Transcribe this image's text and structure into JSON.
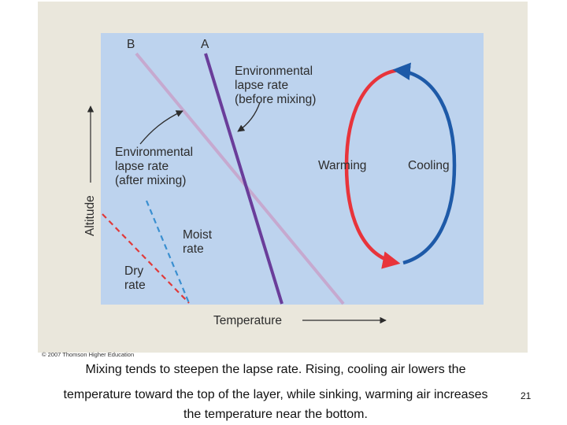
{
  "diagram": {
    "line_b_label": "B",
    "line_a_label": "A",
    "env_before_label": [
      "Environmental",
      "lapse rate",
      "(before mixing)"
    ],
    "env_after_label": [
      "Environmental",
      "lapse rate",
      "(after mixing)"
    ],
    "moist_label": [
      "Moist",
      "rate"
    ],
    "dry_label": [
      "Dry",
      "rate"
    ],
    "warming_label": "Warming",
    "cooling_label": "Cooling",
    "y_axis_label": "Altitude",
    "x_axis_label": "Temperature",
    "colors": {
      "plot_background": "#bdd3ee",
      "frame": "#eae7dc",
      "line_a": "#6a3d9a",
      "line_b": "#c6a9cf",
      "warming": "#e8343b",
      "cooling": "#1e5aa8",
      "dry_rate": "#e03a3a",
      "moist_rate": "#3a8fd0"
    }
  },
  "credit": "© 2007 Thomson Higher Education",
  "caption": {
    "line1": "Mixing tends to steepen the lapse rate. Rising, cooling air lowers the",
    "line2": "temperature toward the top of the layer, while sinking, warming air increases",
    "line3": "the temperature near the bottom."
  },
  "page_number": "21"
}
